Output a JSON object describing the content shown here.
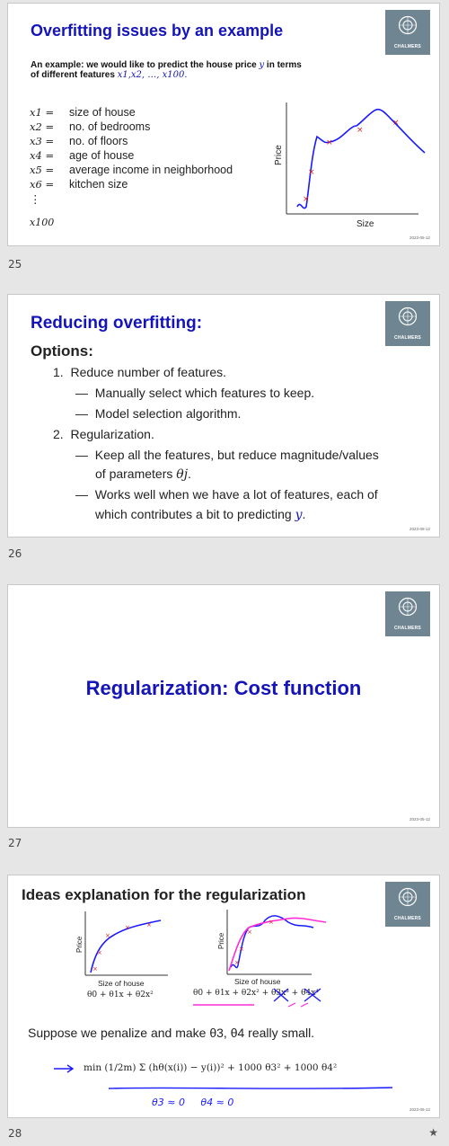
{
  "slides": [
    {
      "number": "25",
      "title": "Overfitting issues by an example",
      "intro_line1": "An example: we would like to predict the house price",
      "intro_var": "y",
      "intro_line1_end": " in terms",
      "intro_line2": "of different features",
      "intro_features": "x1,x2, …, x100.",
      "features": [
        {
          "var": "x1 =",
          "label": "size of house"
        },
        {
          "var": "x2 =",
          "label": "no. of bedrooms"
        },
        {
          "var": "x3 =",
          "label": "no. of floors"
        },
        {
          "var": "x4 =",
          "label": "age of house"
        },
        {
          "var": "x5 =",
          "label": "average income in neighborhood"
        },
        {
          "var": "x6 =",
          "label": "kitchen size"
        }
      ],
      "vdots": "⋮",
      "last_var": "x100",
      "chart_ylabel": "Price",
      "chart_xlabel": "Size",
      "date": "2023-05-12",
      "logo_text": "CHALMERS"
    },
    {
      "number": "26",
      "title": "Reducing overfitting:",
      "options_heading": "Options:",
      "items": [
        {
          "n": "1.",
          "text": "Reduce number of features."
        },
        {
          "dash": "—",
          "text": "Manually select which features to keep."
        },
        {
          "dash": "—",
          "text": "Model selection algorithm."
        },
        {
          "n": "2.",
          "text": "Regularization."
        },
        {
          "dash": "—",
          "text": "Keep all the features, but reduce magnitude/values"
        },
        {
          "cont": "of parameters",
          "math": "θj",
          "end": "."
        },
        {
          "dash": "—",
          "text": "Works well when we have a lot of features, each of"
        },
        {
          "cont": "which contributes a bit to predicting",
          "math": "y",
          "end": "."
        }
      ],
      "date": "2023-05-12",
      "logo_text": "CHALMERS"
    },
    {
      "number": "27",
      "title": "Regularization: Cost function",
      "date": "2023-05-12",
      "logo_text": "CHALMERS"
    },
    {
      "number": "28",
      "title": "Ideas explanation for the regularization",
      "left_chart_ylabel": "Price",
      "left_chart_xlabel": "Size of house",
      "left_formula": "θ0 + θ1x + θ2x²",
      "right_chart_ylabel": "Price",
      "right_chart_xlabel": "Size of house",
      "right_formula": "θ0 + θ1x + θ2x² + θ3x³ + θ4x⁴",
      "suppose": "Suppose we penalize and make θ3, θ4 really small.",
      "cost_formula": "min (1/2m) Σ (hθ(x(i)) − y(i))² + 1000 θ3² + 1000 θ4²",
      "handwritten_note": "θ3 ≈ 0     θ4 ≈ 0",
      "date": "2023-05-12",
      "logo_text": "CHALMERS"
    }
  ],
  "colors": {
    "title_blue": "#1414b8",
    "annotation_blue": "#1a1aff",
    "highlight_magenta": "#ff2bd6",
    "logo_bg": "#6f8591"
  },
  "star": "★"
}
